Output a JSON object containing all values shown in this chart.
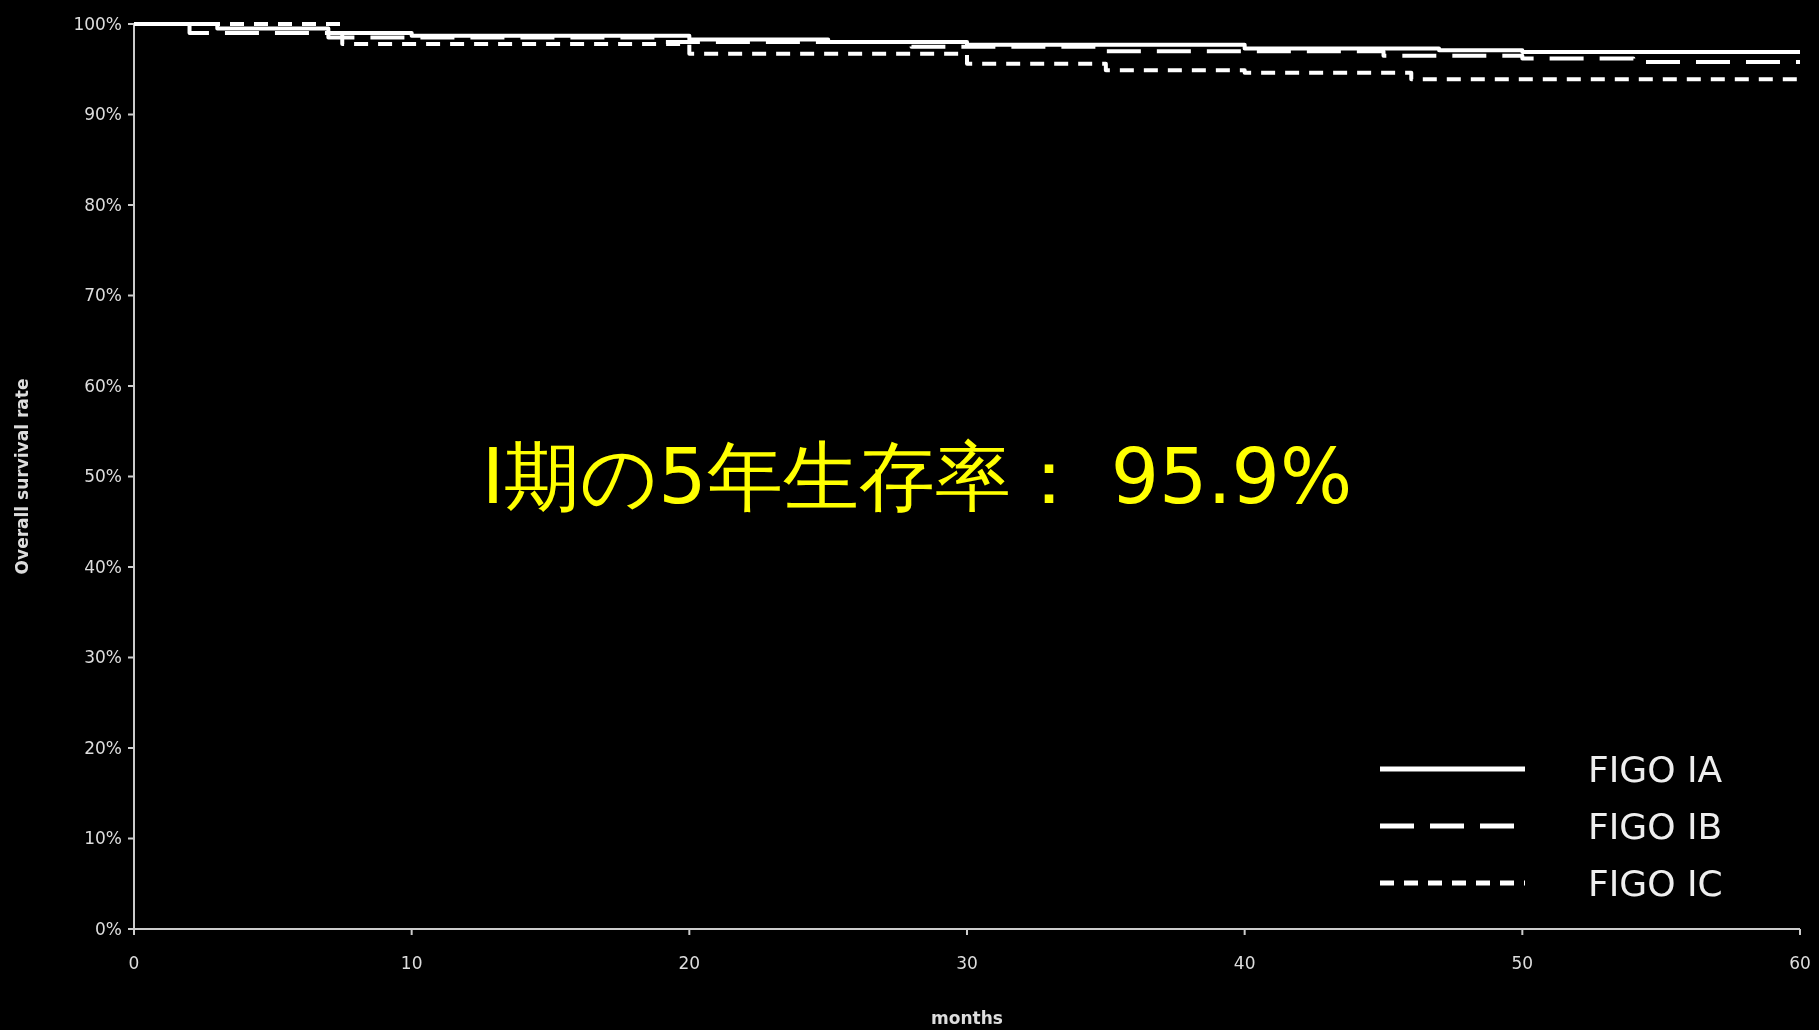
{
  "chart_data": {
    "type": "step",
    "xlabel": "months",
    "ylabel": "Overall survival rate",
    "annotations": [
      "Ⅰ期の5年生存率： 95.9%"
    ],
    "xlim": [
      0,
      60
    ],
    "xticks": [
      0,
      10,
      20,
      30,
      40,
      50,
      60
    ],
    "ylim": [
      0,
      100
    ],
    "yticks": [
      {
        "value": 0,
        "label": "0%"
      },
      {
        "value": 10,
        "label": "10%"
      },
      {
        "value": 20,
        "label": "20%"
      },
      {
        "value": 30,
        "label": "30%"
      },
      {
        "value": 40,
        "label": "40%"
      },
      {
        "value": 50,
        "label": "50%"
      },
      {
        "value": 60,
        "label": "60%"
      },
      {
        "value": 70,
        "label": "70%"
      },
      {
        "value": 80,
        "label": "80%"
      },
      {
        "value": 90,
        "label": "90%"
      },
      {
        "value": 100,
        "label": "100%"
      }
    ],
    "grid": false,
    "legend": "bottom right",
    "series": [
      {
        "name": "FIGO IA",
        "color": "#ffffff",
        "line_style": "solid",
        "x": [
          0,
          3,
          7,
          10,
          20,
          25,
          30,
          40,
          47,
          50,
          60
        ],
        "values": [
          100,
          99.5,
          99,
          98.7,
          98.3,
          98,
          97.7,
          97.3,
          97.1,
          96.9,
          96.9
        ]
      },
      {
        "name": "FIGO IB",
        "color": "#ffffff",
        "line_style": "longdash",
        "x": [
          0,
          2,
          7,
          19,
          28,
          35,
          45,
          50,
          54,
          60
        ],
        "values": [
          100,
          99,
          98.5,
          98,
          97.5,
          97,
          96.5,
          96.2,
          95.8,
          95.8
        ]
      },
      {
        "name": "FIGO IC",
        "color": "#ffffff",
        "line_style": "dashed",
        "x": [
          0,
          7.5,
          20,
          30,
          35,
          40,
          46,
          60
        ],
        "values": [
          100,
          97.8,
          96.7,
          95.6,
          94.9,
          94.6,
          93.9,
          93.9
        ]
      }
    ]
  }
}
